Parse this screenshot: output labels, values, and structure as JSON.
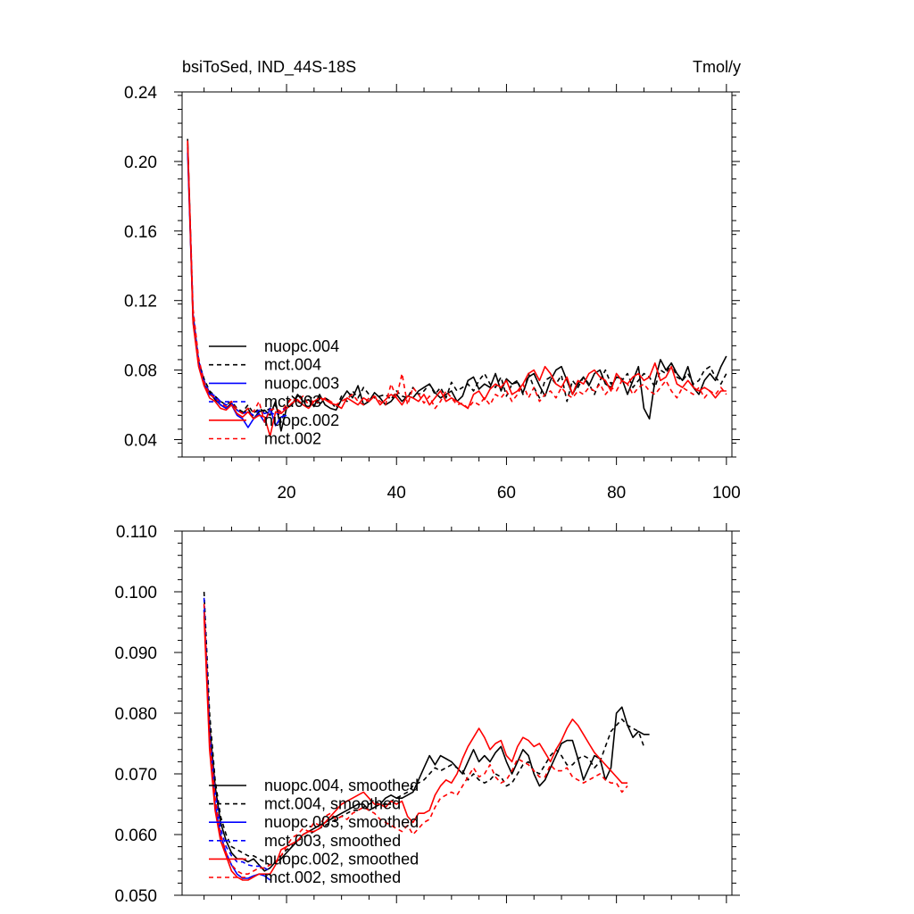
{
  "chart_data": [
    {
      "type": "line",
      "title": "bsiToSed, IND_44S-18S",
      "units": "Tmol/y",
      "xlim": [
        1,
        101
      ],
      "ylim": [
        0.03,
        0.24
      ],
      "yticks": [
        "0.04",
        "0.08",
        "0.12",
        "0.16",
        "0.20",
        "0.24"
      ],
      "ytick_values": [
        0.04,
        0.08,
        0.12,
        0.16,
        0.2,
        0.24
      ],
      "xticks": [
        "20",
        "40",
        "60",
        "80",
        "100"
      ],
      "xtick_values": [
        20,
        40,
        60,
        80,
        100
      ],
      "legend_placement": "lower-left",
      "series": [
        {
          "name": "nuopc.004",
          "color": "#000000",
          "dash": "solid",
          "x_start": 2,
          "values": [
            0.213,
            0.108,
            0.083,
            0.072,
            0.067,
            0.063,
            0.06,
            0.058,
            0.061,
            0.057,
            0.055,
            0.058,
            0.052,
            0.056,
            0.057,
            0.054,
            0.062,
            0.045,
            0.058,
            0.06,
            0.066,
            0.062,
            0.063,
            0.059,
            0.066,
            0.06,
            0.058,
            0.057,
            0.063,
            0.068,
            0.064,
            0.071,
            0.06,
            0.062,
            0.067,
            0.064,
            0.06,
            0.062,
            0.066,
            0.062,
            0.065,
            0.064,
            0.068,
            0.07,
            0.072,
            0.067,
            0.064,
            0.066,
            0.068,
            0.062,
            0.065,
            0.074,
            0.076,
            0.069,
            0.072,
            0.07,
            0.078,
            0.068,
            0.075,
            0.072,
            0.073,
            0.067,
            0.076,
            0.078,
            0.071,
            0.065,
            0.074,
            0.08,
            0.082,
            0.074,
            0.066,
            0.072,
            0.076,
            0.071,
            0.078,
            0.08,
            0.072,
            0.07,
            0.076,
            0.075,
            0.066,
            0.074,
            0.082,
            0.058,
            0.052,
            0.074,
            0.086,
            0.08,
            0.084,
            0.078,
            0.074,
            0.082,
            0.07,
            0.066,
            0.074,
            0.078,
            0.074,
            0.082,
            0.088
          ]
        },
        {
          "name": "mct.004",
          "color": "#000000",
          "dash": "dashed",
          "x_start": 2,
          "values": [
            0.21,
            0.112,
            0.085,
            0.075,
            0.068,
            0.065,
            0.062,
            0.06,
            0.062,
            0.058,
            0.056,
            0.06,
            0.055,
            0.058,
            0.056,
            0.058,
            0.06,
            0.05,
            0.06,
            0.065,
            0.062,
            0.06,
            0.065,
            0.063,
            0.06,
            0.064,
            0.062,
            0.058,
            0.065,
            0.062,
            0.068,
            0.064,
            0.07,
            0.066,
            0.064,
            0.065,
            0.066,
            0.063,
            0.068,
            0.065,
            0.064,
            0.07,
            0.066,
            0.068,
            0.072,
            0.066,
            0.07,
            0.064,
            0.073,
            0.068,
            0.07,
            0.072,
            0.068,
            0.074,
            0.078,
            0.072,
            0.07,
            0.076,
            0.065,
            0.072,
            0.074,
            0.066,
            0.078,
            0.07,
            0.064,
            0.074,
            0.076,
            0.072,
            0.077,
            0.062,
            0.074,
            0.07,
            0.076,
            0.072,
            0.066,
            0.074,
            0.08,
            0.072,
            0.076,
            0.074,
            0.078,
            0.07,
            0.074,
            0.078,
            0.076,
            0.07,
            0.08,
            0.078,
            0.084,
            0.076,
            0.074,
            0.078,
            0.072,
            0.074,
            0.08,
            0.082,
            0.076,
            0.072,
            0.078
          ]
        },
        {
          "name": "nuopc.003",
          "color": "#0000ff",
          "dash": "solid",
          "x_start": 2,
          "values": [
            0.205,
            0.11,
            0.084,
            0.072,
            0.066,
            0.064,
            0.06,
            0.058,
            0.06,
            0.054,
            0.052,
            0.047,
            0.052,
            0.055,
            0.05,
            0.058,
            0.048,
            0.053,
            0.054
          ]
        },
        {
          "name": "mct.003",
          "color": "#0000ff",
          "dash": "dashed",
          "x_start": 2,
          "values": [
            0.208,
            0.113,
            0.086,
            0.074,
            0.067,
            0.065,
            0.062,
            0.06,
            0.061,
            0.057,
            0.055,
            0.056,
            0.054,
            0.057,
            0.055,
            0.056,
            0.054,
            0.057,
            0.058
          ]
        },
        {
          "name": "nuopc.002",
          "color": "#ff0000",
          "dash": "solid",
          "x_start": 2,
          "values": [
            0.211,
            0.107,
            0.082,
            0.071,
            0.064,
            0.062,
            0.058,
            0.057,
            0.06,
            0.055,
            0.053,
            0.056,
            0.052,
            0.054,
            0.053,
            0.042,
            0.056,
            0.055,
            0.058,
            0.061,
            0.063,
            0.06,
            0.058,
            0.062,
            0.064,
            0.063,
            0.061,
            0.06,
            0.058,
            0.064,
            0.062,
            0.06,
            0.064,
            0.062,
            0.065,
            0.06,
            0.063,
            0.066,
            0.064,
            0.06,
            0.065,
            0.064,
            0.062,
            0.066,
            0.06,
            0.064,
            0.068,
            0.062,
            0.064,
            0.062,
            0.06,
            0.058,
            0.066,
            0.068,
            0.063,
            0.069,
            0.072,
            0.07,
            0.074,
            0.066,
            0.068,
            0.072,
            0.078,
            0.08,
            0.074,
            0.082,
            0.078,
            0.072,
            0.07,
            0.076,
            0.066,
            0.074,
            0.072,
            0.078,
            0.08,
            0.076,
            0.074,
            0.068,
            0.078,
            0.074,
            0.072,
            0.076,
            0.078,
            0.074,
            0.076,
            0.084,
            0.074,
            0.076,
            0.082,
            0.072,
            0.07,
            0.074,
            0.07,
            0.068,
            0.07,
            0.068,
            0.064,
            0.068,
            0.068
          ]
        },
        {
          "name": "mct.002",
          "color": "#ff0000",
          "dash": "dashed",
          "x_start": 2,
          "values": [
            0.212,
            0.115,
            0.087,
            0.073,
            0.066,
            0.064,
            0.061,
            0.059,
            0.062,
            0.057,
            0.055,
            0.058,
            0.056,
            0.062,
            0.05,
            0.057,
            0.058,
            0.056,
            0.06,
            0.064,
            0.062,
            0.065,
            0.06,
            0.063,
            0.061,
            0.064,
            0.062,
            0.06,
            0.062,
            0.064,
            0.066,
            0.062,
            0.06,
            0.064,
            0.065,
            0.062,
            0.06,
            0.072,
            0.064,
            0.078,
            0.06,
            0.07,
            0.066,
            0.061,
            0.065,
            0.058,
            0.062,
            0.068,
            0.064,
            0.06,
            0.061,
            0.058,
            0.062,
            0.06,
            0.064,
            0.06,
            0.066,
            0.064,
            0.068,
            0.062,
            0.066,
            0.072,
            0.064,
            0.07,
            0.062,
            0.066,
            0.068,
            0.064,
            0.07,
            0.066,
            0.064,
            0.068,
            0.066,
            0.07,
            0.068,
            0.072,
            0.066,
            0.07,
            0.068,
            0.074,
            0.072,
            0.066,
            0.07,
            0.072,
            0.068,
            0.066,
            0.07,
            0.074,
            0.068,
            0.064,
            0.07,
            0.068,
            0.066,
            0.07,
            0.064,
            0.068,
            0.066,
            0.07,
            0.066
          ]
        }
      ]
    },
    {
      "type": "line",
      "xlim": [
        1,
        101
      ],
      "ylim": [
        0.05,
        0.11
      ],
      "yticks": [
        "0.050",
        "0.060",
        "0.070",
        "0.080",
        "0.090",
        "0.100",
        "0.110"
      ],
      "ytick_values": [
        0.05,
        0.06,
        0.07,
        0.08,
        0.09,
        0.1,
        0.11
      ],
      "xtick_values": [
        20,
        40,
        60,
        80,
        100
      ],
      "legend_placement": "lower-left",
      "series": [
        {
          "name": "nuopc.004, smoothed",
          "color": "#000000",
          "dash": "solid",
          "x_start": 5,
          "values": [
            0.097,
            0.078,
            0.068,
            0.062,
            0.059,
            0.057,
            0.056,
            0.056,
            0.0555,
            0.056,
            0.055,
            0.054,
            0.0545,
            0.0555,
            0.056,
            0.057,
            0.058,
            0.059,
            0.06,
            0.0605,
            0.061,
            0.0615,
            0.062,
            0.0625,
            0.063,
            0.0635,
            0.064,
            0.0645,
            0.065,
            0.065,
            0.064,
            0.0645,
            0.065,
            0.066,
            0.0665,
            0.066,
            0.066,
            0.0665,
            0.067,
            0.069,
            0.071,
            0.073,
            0.0715,
            0.073,
            0.0725,
            0.072,
            0.071,
            0.07,
            0.072,
            0.074,
            0.072,
            0.073,
            0.072,
            0.0735,
            0.0745,
            0.072,
            0.07,
            0.072,
            0.074,
            0.073,
            0.07,
            0.068,
            0.069,
            0.071,
            0.073,
            0.075,
            0.0755,
            0.0755,
            0.0725,
            0.069,
            0.071,
            0.073,
            0.0725,
            0.069,
            0.071,
            0.08,
            0.081,
            0.078,
            0.076,
            0.077,
            0.0765,
            0.0765
          ]
        },
        {
          "name": "mct.004, smoothed",
          "color": "#000000",
          "dash": "dashed",
          "x_start": 5,
          "values": [
            0.1,
            0.08,
            0.069,
            0.063,
            0.06,
            0.058,
            0.0575,
            0.057,
            0.0565,
            0.0565,
            0.056,
            0.0555,
            0.055,
            0.0555,
            0.0565,
            0.0575,
            0.058,
            0.059,
            0.0595,
            0.06,
            0.0605,
            0.061,
            0.0615,
            0.062,
            0.0625,
            0.063,
            0.0635,
            0.064,
            0.064,
            0.0645,
            0.065,
            0.0655,
            0.065,
            0.065,
            0.0655,
            0.066,
            0.0665,
            0.067,
            0.068,
            0.0685,
            0.069,
            0.07,
            0.071,
            0.0705,
            0.071,
            0.0715,
            0.071,
            0.0705,
            0.069,
            0.07,
            0.069,
            0.0685,
            0.069,
            0.07,
            0.0695,
            0.068,
            0.0685,
            0.07,
            0.0715,
            0.072,
            0.0705,
            0.07,
            0.0715,
            0.073,
            0.074,
            0.073,
            0.0715,
            0.0715,
            0.0725,
            0.073,
            0.0725,
            0.071,
            0.072,
            0.0745,
            0.077,
            0.078,
            0.079,
            0.078,
            0.0775,
            0.077,
            0.0745
          ]
        },
        {
          "name": "nuopc.003, smoothed",
          "color": "#0000ff",
          "dash": "solid",
          "x_start": 5,
          "values": [
            0.097,
            0.075,
            0.065,
            0.06,
            0.057,
            0.055,
            0.0535,
            0.0528,
            0.0528,
            0.0532,
            0.0535,
            0.0532,
            0.0525
          ]
        },
        {
          "name": "mct.003, smoothed",
          "color": "#0000ff",
          "dash": "dashed",
          "x_start": 5,
          "values": [
            0.099,
            0.077,
            0.067,
            0.061,
            0.058,
            0.0565,
            0.0555,
            0.0555,
            0.055,
            0.0548,
            0.0548,
            0.0545,
            0.054
          ]
        },
        {
          "name": "nuopc.002, smoothed",
          "color": "#ff0000",
          "dash": "solid",
          "x_start": 5,
          "values": [
            0.096,
            0.074,
            0.064,
            0.059,
            0.0565,
            0.054,
            0.053,
            0.0525,
            0.0525,
            0.053,
            0.0535,
            0.0535,
            0.0535,
            0.055,
            0.0575,
            0.058,
            0.0585,
            0.059,
            0.06,
            0.0605,
            0.0605,
            0.061,
            0.062,
            0.063,
            0.064,
            0.065,
            0.0655,
            0.066,
            0.0665,
            0.067,
            0.066,
            0.065,
            0.065,
            0.0645,
            0.0655,
            0.065,
            0.0655,
            0.063,
            0.062,
            0.0635,
            0.0635,
            0.064,
            0.0665,
            0.068,
            0.069,
            0.0685,
            0.07,
            0.0725,
            0.0745,
            0.076,
            0.0775,
            0.076,
            0.074,
            0.075,
            0.0755,
            0.073,
            0.072,
            0.0745,
            0.076,
            0.0755,
            0.0745,
            0.075,
            0.0735,
            0.072,
            0.074,
            0.0755,
            0.0775,
            0.079,
            0.078,
            0.0765,
            0.075,
            0.0735,
            0.0725,
            0.0715,
            0.0705,
            0.0695,
            0.0685,
            0.0685
          ]
        },
        {
          "name": "mct.002, smoothed",
          "color": "#ff0000",
          "dash": "dashed",
          "x_start": 5,
          "values": [
            0.098,
            0.076,
            0.066,
            0.06,
            0.057,
            0.055,
            0.054,
            0.0535,
            0.0535,
            0.054,
            0.0545,
            0.0545,
            0.055,
            0.0555,
            0.0565,
            0.058,
            0.0595,
            0.06,
            0.061,
            0.0605,
            0.062,
            0.0615,
            0.063,
            0.0635,
            0.0625,
            0.063,
            0.0625,
            0.0635,
            0.064,
            0.0645,
            0.064,
            0.0635,
            0.0625,
            0.062,
            0.0615,
            0.061,
            0.0605,
            0.0615,
            0.06,
            0.061,
            0.062,
            0.0625,
            0.0645,
            0.066,
            0.0665,
            0.067,
            0.0665,
            0.068,
            0.0695,
            0.071,
            0.0695,
            0.07,
            0.0715,
            0.0695,
            0.0685,
            0.069,
            0.0705,
            0.0725,
            0.072,
            0.0715,
            0.0705,
            0.0695,
            0.0695,
            0.0715,
            0.0705,
            0.0705,
            0.071,
            0.0695,
            0.069,
            0.0685,
            0.069,
            0.0695,
            0.07,
            0.069,
            0.0685,
            0.0685,
            0.067,
            0.068
          ]
        }
      ]
    }
  ]
}
